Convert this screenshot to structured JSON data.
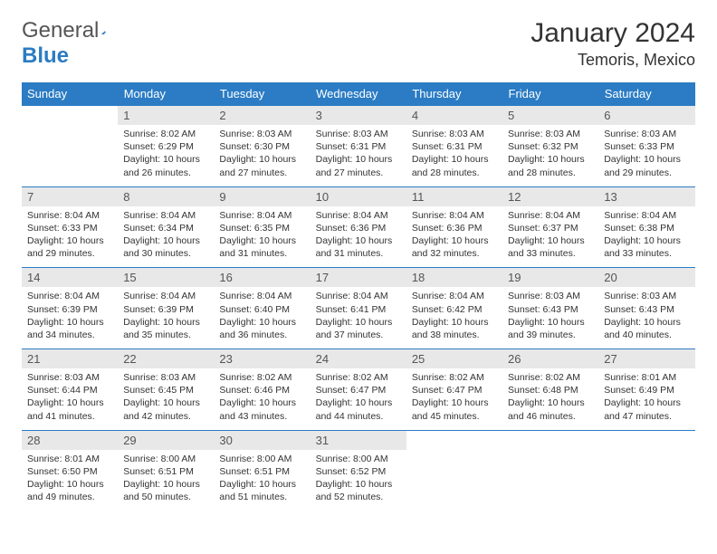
{
  "logo": {
    "text1": "General",
    "text2": "Blue",
    "icon_color": "#2b7cc4"
  },
  "header": {
    "month": "January 2024",
    "location": "Temoris, Mexico"
  },
  "colors": {
    "header_bar": "#2b7cc4",
    "daynum_bg": "#e8e8e8",
    "text": "#333333",
    "bg": "#ffffff"
  },
  "weekdays": [
    "Sunday",
    "Monday",
    "Tuesday",
    "Wednesday",
    "Thursday",
    "Friday",
    "Saturday"
  ],
  "weeks": [
    [
      null,
      {
        "n": "1",
        "sr": "Sunrise: 8:02 AM",
        "ss": "Sunset: 6:29 PM",
        "dl": "Daylight: 10 hours and 26 minutes."
      },
      {
        "n": "2",
        "sr": "Sunrise: 8:03 AM",
        "ss": "Sunset: 6:30 PM",
        "dl": "Daylight: 10 hours and 27 minutes."
      },
      {
        "n": "3",
        "sr": "Sunrise: 8:03 AM",
        "ss": "Sunset: 6:31 PM",
        "dl": "Daylight: 10 hours and 27 minutes."
      },
      {
        "n": "4",
        "sr": "Sunrise: 8:03 AM",
        "ss": "Sunset: 6:31 PM",
        "dl": "Daylight: 10 hours and 28 minutes."
      },
      {
        "n": "5",
        "sr": "Sunrise: 8:03 AM",
        "ss": "Sunset: 6:32 PM",
        "dl": "Daylight: 10 hours and 28 minutes."
      },
      {
        "n": "6",
        "sr": "Sunrise: 8:03 AM",
        "ss": "Sunset: 6:33 PM",
        "dl": "Daylight: 10 hours and 29 minutes."
      }
    ],
    [
      {
        "n": "7",
        "sr": "Sunrise: 8:04 AM",
        "ss": "Sunset: 6:33 PM",
        "dl": "Daylight: 10 hours and 29 minutes."
      },
      {
        "n": "8",
        "sr": "Sunrise: 8:04 AM",
        "ss": "Sunset: 6:34 PM",
        "dl": "Daylight: 10 hours and 30 minutes."
      },
      {
        "n": "9",
        "sr": "Sunrise: 8:04 AM",
        "ss": "Sunset: 6:35 PM",
        "dl": "Daylight: 10 hours and 31 minutes."
      },
      {
        "n": "10",
        "sr": "Sunrise: 8:04 AM",
        "ss": "Sunset: 6:36 PM",
        "dl": "Daylight: 10 hours and 31 minutes."
      },
      {
        "n": "11",
        "sr": "Sunrise: 8:04 AM",
        "ss": "Sunset: 6:36 PM",
        "dl": "Daylight: 10 hours and 32 minutes."
      },
      {
        "n": "12",
        "sr": "Sunrise: 8:04 AM",
        "ss": "Sunset: 6:37 PM",
        "dl": "Daylight: 10 hours and 33 minutes."
      },
      {
        "n": "13",
        "sr": "Sunrise: 8:04 AM",
        "ss": "Sunset: 6:38 PM",
        "dl": "Daylight: 10 hours and 33 minutes."
      }
    ],
    [
      {
        "n": "14",
        "sr": "Sunrise: 8:04 AM",
        "ss": "Sunset: 6:39 PM",
        "dl": "Daylight: 10 hours and 34 minutes."
      },
      {
        "n": "15",
        "sr": "Sunrise: 8:04 AM",
        "ss": "Sunset: 6:39 PM",
        "dl": "Daylight: 10 hours and 35 minutes."
      },
      {
        "n": "16",
        "sr": "Sunrise: 8:04 AM",
        "ss": "Sunset: 6:40 PM",
        "dl": "Daylight: 10 hours and 36 minutes."
      },
      {
        "n": "17",
        "sr": "Sunrise: 8:04 AM",
        "ss": "Sunset: 6:41 PM",
        "dl": "Daylight: 10 hours and 37 minutes."
      },
      {
        "n": "18",
        "sr": "Sunrise: 8:04 AM",
        "ss": "Sunset: 6:42 PM",
        "dl": "Daylight: 10 hours and 38 minutes."
      },
      {
        "n": "19",
        "sr": "Sunrise: 8:03 AM",
        "ss": "Sunset: 6:43 PM",
        "dl": "Daylight: 10 hours and 39 minutes."
      },
      {
        "n": "20",
        "sr": "Sunrise: 8:03 AM",
        "ss": "Sunset: 6:43 PM",
        "dl": "Daylight: 10 hours and 40 minutes."
      }
    ],
    [
      {
        "n": "21",
        "sr": "Sunrise: 8:03 AM",
        "ss": "Sunset: 6:44 PM",
        "dl": "Daylight: 10 hours and 41 minutes."
      },
      {
        "n": "22",
        "sr": "Sunrise: 8:03 AM",
        "ss": "Sunset: 6:45 PM",
        "dl": "Daylight: 10 hours and 42 minutes."
      },
      {
        "n": "23",
        "sr": "Sunrise: 8:02 AM",
        "ss": "Sunset: 6:46 PM",
        "dl": "Daylight: 10 hours and 43 minutes."
      },
      {
        "n": "24",
        "sr": "Sunrise: 8:02 AM",
        "ss": "Sunset: 6:47 PM",
        "dl": "Daylight: 10 hours and 44 minutes."
      },
      {
        "n": "25",
        "sr": "Sunrise: 8:02 AM",
        "ss": "Sunset: 6:47 PM",
        "dl": "Daylight: 10 hours and 45 minutes."
      },
      {
        "n": "26",
        "sr": "Sunrise: 8:02 AM",
        "ss": "Sunset: 6:48 PM",
        "dl": "Daylight: 10 hours and 46 minutes."
      },
      {
        "n": "27",
        "sr": "Sunrise: 8:01 AM",
        "ss": "Sunset: 6:49 PM",
        "dl": "Daylight: 10 hours and 47 minutes."
      }
    ],
    [
      {
        "n": "28",
        "sr": "Sunrise: 8:01 AM",
        "ss": "Sunset: 6:50 PM",
        "dl": "Daylight: 10 hours and 49 minutes."
      },
      {
        "n": "29",
        "sr": "Sunrise: 8:00 AM",
        "ss": "Sunset: 6:51 PM",
        "dl": "Daylight: 10 hours and 50 minutes."
      },
      {
        "n": "30",
        "sr": "Sunrise: 8:00 AM",
        "ss": "Sunset: 6:51 PM",
        "dl": "Daylight: 10 hours and 51 minutes."
      },
      {
        "n": "31",
        "sr": "Sunrise: 8:00 AM",
        "ss": "Sunset: 6:52 PM",
        "dl": "Daylight: 10 hours and 52 minutes."
      },
      null,
      null,
      null
    ]
  ]
}
